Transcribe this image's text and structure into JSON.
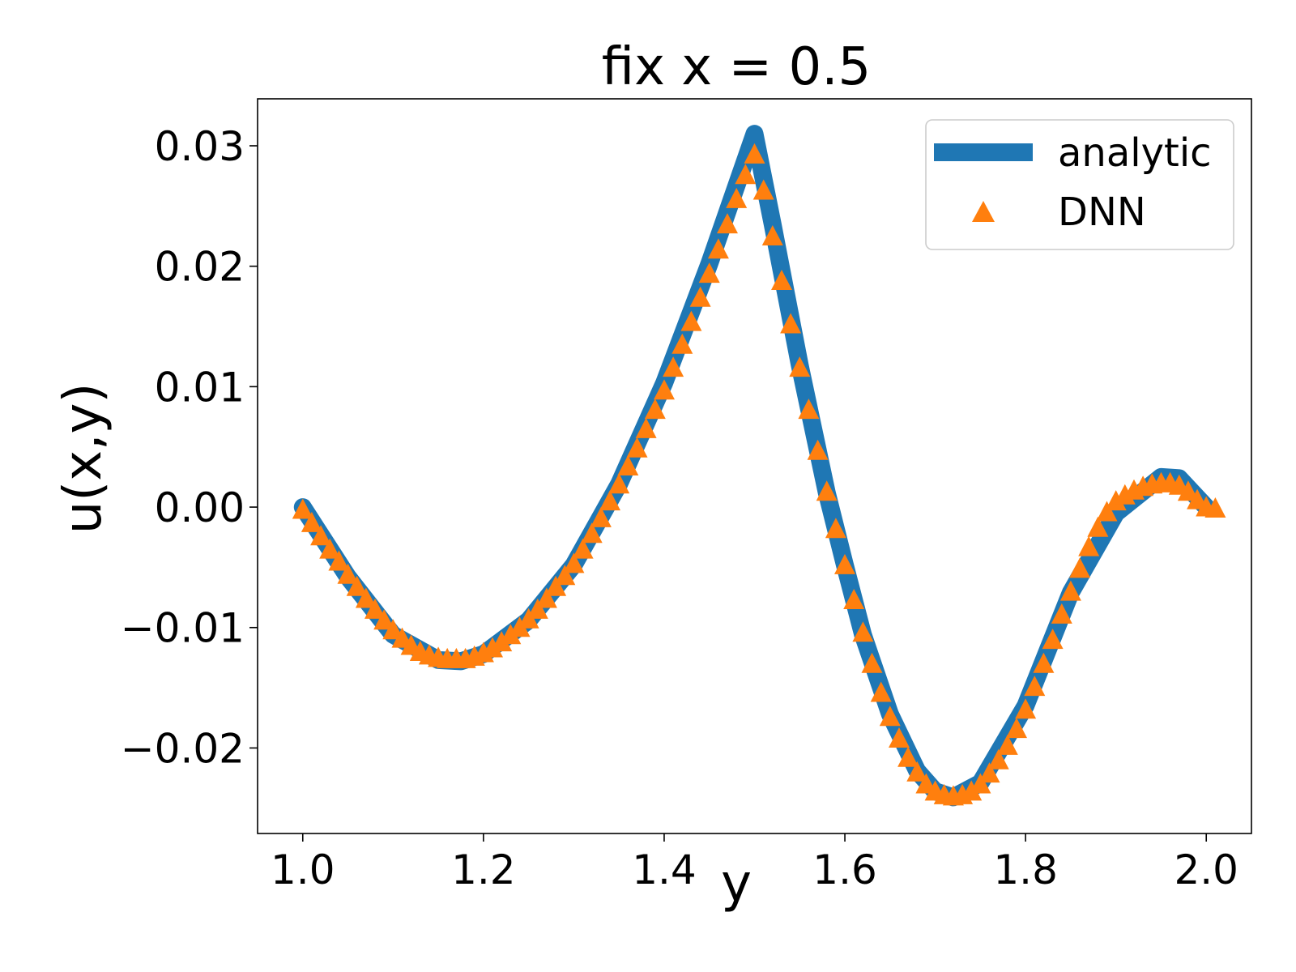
{
  "chart_data": {
    "type": "line",
    "title": "fix x = 0.5",
    "xlabel": "y",
    "ylabel": "u(x,y)",
    "xlim": [
      0.95,
      2.05
    ],
    "ylim": [
      -0.0271,
      0.0339
    ],
    "x_ticks": [
      1.0,
      1.2,
      1.4,
      1.6,
      1.8,
      2.0
    ],
    "x_tick_labels": [
      "1.0",
      "1.2",
      "1.4",
      "1.6",
      "1.8",
      "2.0"
    ],
    "y_ticks": [
      -0.02,
      -0.01,
      0.0,
      0.01,
      0.02,
      0.03
    ],
    "y_tick_labels": [
      "−0.02",
      "−0.01",
      "0.00",
      "0.01",
      "0.02",
      "0.03"
    ],
    "grid": false,
    "legend_position": "top-right",
    "series": [
      {
        "name": "analytic",
        "style": "thick-line",
        "color": "#1f77b4",
        "points": [
          [
            1.0,
            0.0
          ],
          [
            1.05,
            -0.0058
          ],
          [
            1.1,
            -0.0106
          ],
          [
            1.15,
            -0.0127
          ],
          [
            1.175,
            -0.0128
          ],
          [
            1.2,
            -0.0122
          ],
          [
            1.25,
            -0.0094
          ],
          [
            1.3,
            -0.0048
          ],
          [
            1.35,
            0.0019
          ],
          [
            1.4,
            0.0103
          ],
          [
            1.45,
            0.0202
          ],
          [
            1.475,
            0.0256
          ],
          [
            1.5,
            0.031
          ],
          [
            1.52,
            0.0235
          ],
          [
            1.55,
            0.0118
          ],
          [
            1.58,
            0.0012
          ],
          [
            1.6,
            -0.0048
          ],
          [
            1.62,
            -0.0106
          ],
          [
            1.65,
            -0.0172
          ],
          [
            1.68,
            -0.0219
          ],
          [
            1.7,
            -0.0236
          ],
          [
            1.72,
            -0.0241
          ],
          [
            1.75,
            -0.0229
          ],
          [
            1.8,
            -0.0165
          ],
          [
            1.85,
            -0.0071
          ],
          [
            1.9,
            -0.0005
          ],
          [
            1.95,
            0.0025
          ],
          [
            1.97,
            0.0024
          ],
          [
            2.0,
            0.0
          ]
        ]
      },
      {
        "name": "DNN",
        "style": "triangle-markers",
        "color": "#ff7f0e",
        "points": [
          [
            1.0,
            -0.0003
          ],
          [
            1.01,
            -0.0014
          ],
          [
            1.02,
            -0.0025
          ],
          [
            1.03,
            -0.0036
          ],
          [
            1.04,
            -0.0046
          ],
          [
            1.05,
            -0.0057
          ],
          [
            1.06,
            -0.0067
          ],
          [
            1.07,
            -0.0077
          ],
          [
            1.08,
            -0.0086
          ],
          [
            1.09,
            -0.0095
          ],
          [
            1.1,
            -0.0103
          ],
          [
            1.11,
            -0.011
          ],
          [
            1.12,
            -0.0116
          ],
          [
            1.13,
            -0.0121
          ],
          [
            1.14,
            -0.0124
          ],
          [
            1.15,
            -0.0126
          ],
          [
            1.16,
            -0.0127
          ],
          [
            1.17,
            -0.0127
          ],
          [
            1.18,
            -0.0127
          ],
          [
            1.19,
            -0.0125
          ],
          [
            1.2,
            -0.0122
          ],
          [
            1.21,
            -0.0118
          ],
          [
            1.22,
            -0.0113
          ],
          [
            1.23,
            -0.0107
          ],
          [
            1.24,
            -0.0101
          ],
          [
            1.25,
            -0.0094
          ],
          [
            1.26,
            -0.0086
          ],
          [
            1.27,
            -0.0077
          ],
          [
            1.28,
            -0.0067
          ],
          [
            1.29,
            -0.0058
          ],
          [
            1.3,
            -0.0048
          ],
          [
            1.31,
            -0.0036
          ],
          [
            1.32,
            -0.0023
          ],
          [
            1.33,
            -0.001
          ],
          [
            1.34,
            0.0004
          ],
          [
            1.35,
            0.0018
          ],
          [
            1.36,
            0.0033
          ],
          [
            1.37,
            0.0048
          ],
          [
            1.38,
            0.0064
          ],
          [
            1.39,
            0.008
          ],
          [
            1.4,
            0.0096
          ],
          [
            1.41,
            0.0115
          ],
          [
            1.42,
            0.0134
          ],
          [
            1.43,
            0.0153
          ],
          [
            1.44,
            0.0173
          ],
          [
            1.45,
            0.0193
          ],
          [
            1.46,
            0.0213
          ],
          [
            1.47,
            0.0234
          ],
          [
            1.48,
            0.0255
          ],
          [
            1.49,
            0.0275
          ],
          [
            1.5,
            0.0292
          ],
          [
            1.51,
            0.0262
          ],
          [
            1.52,
            0.0224
          ],
          [
            1.53,
            0.0187
          ],
          [
            1.54,
            0.0151
          ],
          [
            1.55,
            0.0115
          ],
          [
            1.56,
            0.008
          ],
          [
            1.57,
            0.0046
          ],
          [
            1.58,
            0.0012
          ],
          [
            1.59,
            -0.0019
          ],
          [
            1.6,
            -0.0049
          ],
          [
            1.61,
            -0.0078
          ],
          [
            1.62,
            -0.0105
          ],
          [
            1.63,
            -0.0131
          ],
          [
            1.64,
            -0.0155
          ],
          [
            1.65,
            -0.0175
          ],
          [
            1.66,
            -0.0193
          ],
          [
            1.67,
            -0.0209
          ],
          [
            1.68,
            -0.0221
          ],
          [
            1.69,
            -0.0231
          ],
          [
            1.7,
            -0.0237
          ],
          [
            1.71,
            -0.024
          ],
          [
            1.72,
            -0.0241
          ],
          [
            1.73,
            -0.024
          ],
          [
            1.74,
            -0.0237
          ],
          [
            1.75,
            -0.0231
          ],
          [
            1.76,
            -0.0222
          ],
          [
            1.77,
            -0.0211
          ],
          [
            1.78,
            -0.0199
          ],
          [
            1.79,
            -0.0185
          ],
          [
            1.8,
            -0.0169
          ],
          [
            1.81,
            -0.015
          ],
          [
            1.82,
            -0.0131
          ],
          [
            1.83,
            -0.0111
          ],
          [
            1.84,
            -0.009
          ],
          [
            1.85,
            -0.0071
          ],
          [
            1.86,
            -0.0052
          ],
          [
            1.87,
            -0.0034
          ],
          [
            1.88,
            -0.0018
          ],
          [
            1.89,
            -0.0005
          ],
          [
            1.9,
            0.0004
          ],
          [
            1.91,
            0.0009
          ],
          [
            1.92,
            0.0013
          ],
          [
            1.93,
            0.0016
          ],
          [
            1.94,
            0.0018
          ],
          [
            1.95,
            0.0019
          ],
          [
            1.96,
            0.0019
          ],
          [
            1.97,
            0.0017
          ],
          [
            1.98,
            0.0012
          ],
          [
            1.99,
            0.0005
          ],
          [
            2.0,
            -0.0001
          ],
          [
            2.01,
            -0.0002
          ]
        ]
      }
    ]
  }
}
